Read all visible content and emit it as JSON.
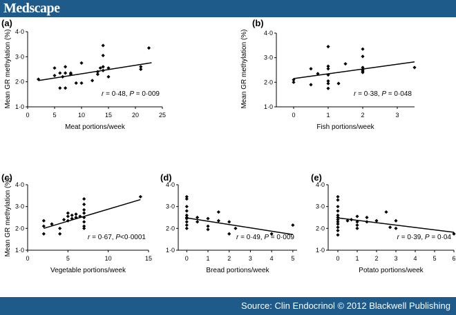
{
  "header": {
    "brand": "Medscape"
  },
  "footer": {
    "source": "Source: Clin Endocrinol © 2012 Blackwell Publishing"
  },
  "colors": {
    "bar": "#1e5a8a",
    "point": "#000000",
    "axis": "#000000"
  },
  "chart_data": [
    {
      "panel": "(a)",
      "type": "scatter",
      "xlabel": "Meat portions/week",
      "ylabel": "Mean GR methylation (%)",
      "xticks": [
        "0",
        "5",
        "10",
        "15",
        "20",
        "25"
      ],
      "yticks": [
        "1·0",
        "2·0",
        "3·0",
        "4·0"
      ],
      "xlim": [
        0,
        25
      ],
      "ylim": [
        1.0,
        4.0
      ],
      "annotation": {
        "r": "0·48",
        "P": "0·009"
      },
      "fit": {
        "x": [
          2,
          23
        ],
        "y": [
          2.05,
          2.76
        ]
      },
      "points": [
        [
          2,
          2.1
        ],
        [
          5,
          2.25
        ],
        [
          5,
          2.55
        ],
        [
          6,
          2.35
        ],
        [
          6,
          1.75
        ],
        [
          6.5,
          2.2
        ],
        [
          7,
          2.6
        ],
        [
          7,
          2.35
        ],
        [
          7,
          1.75
        ],
        [
          8,
          2.3
        ],
        [
          8,
          2.35
        ],
        [
          9,
          1.95
        ],
        [
          10,
          1.95
        ],
        [
          10,
          2.75
        ],
        [
          12,
          2.05
        ],
        [
          13,
          2.3
        ],
        [
          13,
          2.4
        ],
        [
          13.5,
          2.55
        ],
        [
          14,
          3.45
        ],
        [
          14,
          3.05
        ],
        [
          14,
          2.6
        ],
        [
          14,
          2.45
        ],
        [
          15,
          2.2
        ],
        [
          15,
          2.55
        ],
        [
          21,
          2.5
        ],
        [
          21,
          2.6
        ],
        [
          22.5,
          3.35
        ]
      ]
    },
    {
      "panel": "(b)",
      "type": "scatter",
      "xlabel": "Fish portions/week",
      "ylabel": "Mean GR methylation (%)",
      "xticks": [
        "0",
        "1",
        "2",
        "3"
      ],
      "yticks": [
        "1·0",
        "2·0",
        "3·0",
        "4·0"
      ],
      "xlim": [
        -0.5,
        3.5
      ],
      "ylim": [
        1.0,
        4.0
      ],
      "annotation": {
        "r": "0·38",
        "P": "0·048"
      },
      "fit": {
        "x": [
          0,
          3.5
        ],
        "y": [
          2.15,
          2.83
        ]
      },
      "points": [
        [
          0,
          2.0
        ],
        [
          0,
          2.1
        ],
        [
          0.5,
          2.55
        ],
        [
          0.5,
          1.9
        ],
        [
          0.7,
          2.35
        ],
        [
          1,
          3.45
        ],
        [
          1,
          2.65
        ],
        [
          1,
          2.55
        ],
        [
          1,
          2.3
        ],
        [
          1,
          2.05
        ],
        [
          1,
          1.95
        ],
        [
          1,
          1.75
        ],
        [
          1.3,
          1.95
        ],
        [
          1.5,
          2.75
        ],
        [
          2,
          3.35
        ],
        [
          2,
          3.05
        ],
        [
          2,
          2.6
        ],
        [
          2,
          2.5
        ],
        [
          2,
          2.45
        ],
        [
          2,
          2.4
        ],
        [
          3.5,
          2.6
        ]
      ]
    },
    {
      "panel": "(c)",
      "type": "scatter",
      "xlabel": "Vegetable portions/week",
      "ylabel": "Mean GR methylation (%)",
      "xticks": [
        "0",
        "5",
        "10",
        "15"
      ],
      "yticks": [
        "1·0",
        "2·0",
        "3·0",
        "4·0"
      ],
      "xlim": [
        0,
        15
      ],
      "ylim": [
        1.0,
        4.0
      ],
      "annotation": {
        "r": "0·67",
        "P": "<0·0001"
      },
      "fit": {
        "x": [
          2,
          14
        ],
        "y": [
          2.0,
          3.32
        ]
      },
      "points": [
        [
          2,
          2.35
        ],
        [
          2,
          2.1
        ],
        [
          2,
          1.75
        ],
        [
          3,
          2.2
        ],
        [
          4,
          1.75
        ],
        [
          4,
          2.0
        ],
        [
          4.5,
          2.4
        ],
        [
          5,
          2.55
        ],
        [
          5,
          2.7
        ],
        [
          5,
          2.35
        ],
        [
          5.5,
          2.6
        ],
        [
          5.5,
          2.45
        ],
        [
          6,
          2.65
        ],
        [
          6,
          2.5
        ],
        [
          6.5,
          2.55
        ],
        [
          7,
          3.35
        ],
        [
          7,
          3.1
        ],
        [
          7,
          2.85
        ],
        [
          7,
          2.7
        ],
        [
          7,
          2.5
        ],
        [
          7,
          2.3
        ],
        [
          7,
          2.1
        ],
        [
          7,
          2.0
        ],
        [
          14,
          3.45
        ]
      ]
    },
    {
      "panel": "(d)",
      "type": "scatter",
      "xlabel": "Bread portions/week",
      "ylabel": "",
      "xticks": [
        "0",
        "1",
        "2",
        "3",
        "4",
        "5"
      ],
      "yticks": [
        "1·0",
        "2·0",
        "3·0",
        "4·0"
      ],
      "xlim": [
        -0.4,
        5.2
      ],
      "ylim": [
        1.0,
        4.0
      ],
      "annotation": {
        "r": "0·49",
        "P": "0·009"
      },
      "fit": {
        "x": [
          0,
          5
        ],
        "y": [
          2.48,
          1.72
        ]
      },
      "points": [
        [
          0,
          3.45
        ],
        [
          0,
          3.35
        ],
        [
          0,
          3.0
        ],
        [
          0,
          2.8
        ],
        [
          0,
          2.6
        ],
        [
          0,
          2.5
        ],
        [
          0,
          2.45
        ],
        [
          0,
          2.3
        ],
        [
          0,
          2.15
        ],
        [
          0,
          2.0
        ],
        [
          0.5,
          2.5
        ],
        [
          0.5,
          2.3
        ],
        [
          1,
          2.45
        ],
        [
          1,
          2.1
        ],
        [
          1,
          1.95
        ],
        [
          1.5,
          2.75
        ],
        [
          1.5,
          2.35
        ],
        [
          2,
          2.3
        ],
        [
          2,
          1.75
        ],
        [
          2.3,
          2.0
        ],
        [
          4,
          1.75
        ],
        [
          5,
          2.15
        ]
      ]
    },
    {
      "panel": "(e)",
      "type": "scatter",
      "xlabel": "Potato portions/week",
      "ylabel": "",
      "xticks": [
        "0",
        "1",
        "2",
        "3",
        "4",
        "5",
        "6"
      ],
      "yticks": [
        "1·0",
        "2·0",
        "3·0",
        "4·0"
      ],
      "xlim": [
        -0.5,
        6
      ],
      "ylim": [
        1.0,
        4.0
      ],
      "annotation": {
        "r": "0·39",
        "P": "0·04"
      },
      "fit": {
        "x": [
          0,
          6
        ],
        "y": [
          2.48,
          1.82
        ]
      },
      "points": [
        [
          0,
          3.45
        ],
        [
          0,
          3.3
        ],
        [
          0,
          3.0
        ],
        [
          0,
          2.8
        ],
        [
          0,
          2.6
        ],
        [
          0,
          2.5
        ],
        [
          0,
          2.4
        ],
        [
          0,
          2.3
        ],
        [
          0,
          2.2
        ],
        [
          0,
          2.05
        ],
        [
          0,
          1.9
        ],
        [
          0,
          1.7
        ],
        [
          0.5,
          2.35
        ],
        [
          0.7,
          2.4
        ],
        [
          1,
          2.55
        ],
        [
          1,
          2.3
        ],
        [
          1,
          2.15
        ],
        [
          1,
          2.0
        ],
        [
          1.5,
          2.5
        ],
        [
          1.5,
          2.3
        ],
        [
          2,
          2.35
        ],
        [
          2.5,
          2.75
        ],
        [
          2.7,
          2.05
        ],
        [
          3,
          2.35
        ],
        [
          3,
          2.0
        ],
        [
          6,
          1.75
        ]
      ]
    }
  ]
}
